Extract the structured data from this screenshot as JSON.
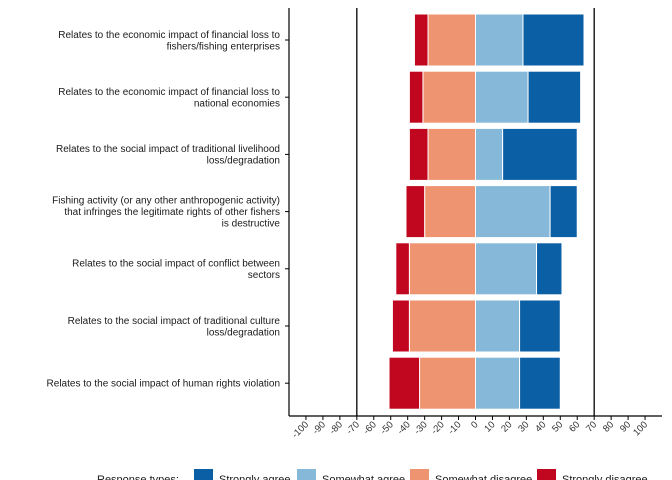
{
  "chart_data": {
    "type": "bar",
    "orientation": "horizontal",
    "stacking": "diverging",
    "categories": [
      "Relates to the economic impact of financial loss to\nfishers/fishing enterprises",
      "Relates to the economic impact of financial loss to\nnational economies",
      "Relates to the social impact of traditional livelihood\nloss/degradation",
      "Fishing activity (or any other anthropogenic activity)\nthat infringes the legitimate rights of other fishers\nis destructive",
      "Relates to the social impact of conflict between\nsectors",
      "Relates to the social impact of traditional culture\nloss/degradation",
      "Relates to the social impact of human rights violation"
    ],
    "series": [
      {
        "name": "Strongly agree",
        "color": "#0b5fa5",
        "values": [
          36,
          31,
          44,
          16,
          15,
          24,
          24
        ]
      },
      {
        "name": "Somewhat agree",
        "color": "#86b9d9",
        "values": [
          28,
          31,
          16,
          44,
          36,
          26,
          26
        ]
      },
      {
        "name": "Somewhat disagree",
        "color": "#ef9470",
        "values": [
          28,
          31,
          28,
          30,
          39,
          39,
          33
        ]
      },
      {
        "name": "Strongly disagree",
        "color": "#c0071f",
        "values": [
          8,
          8,
          11,
          11,
          8,
          10,
          18
        ]
      }
    ],
    "xlim": [
      -110,
      110
    ],
    "xticks": [
      -100,
      -90,
      -80,
      -70,
      -60,
      -50,
      -40,
      -30,
      -20,
      -10,
      0,
      10,
      20,
      30,
      40,
      50,
      60,
      70,
      80,
      90,
      100
    ],
    "reference_lines": [
      -70,
      70
    ],
    "xlabel": "",
    "ylabel": "",
    "legend": {
      "title": "Response types:",
      "position": "bottom"
    },
    "grid": false
  }
}
